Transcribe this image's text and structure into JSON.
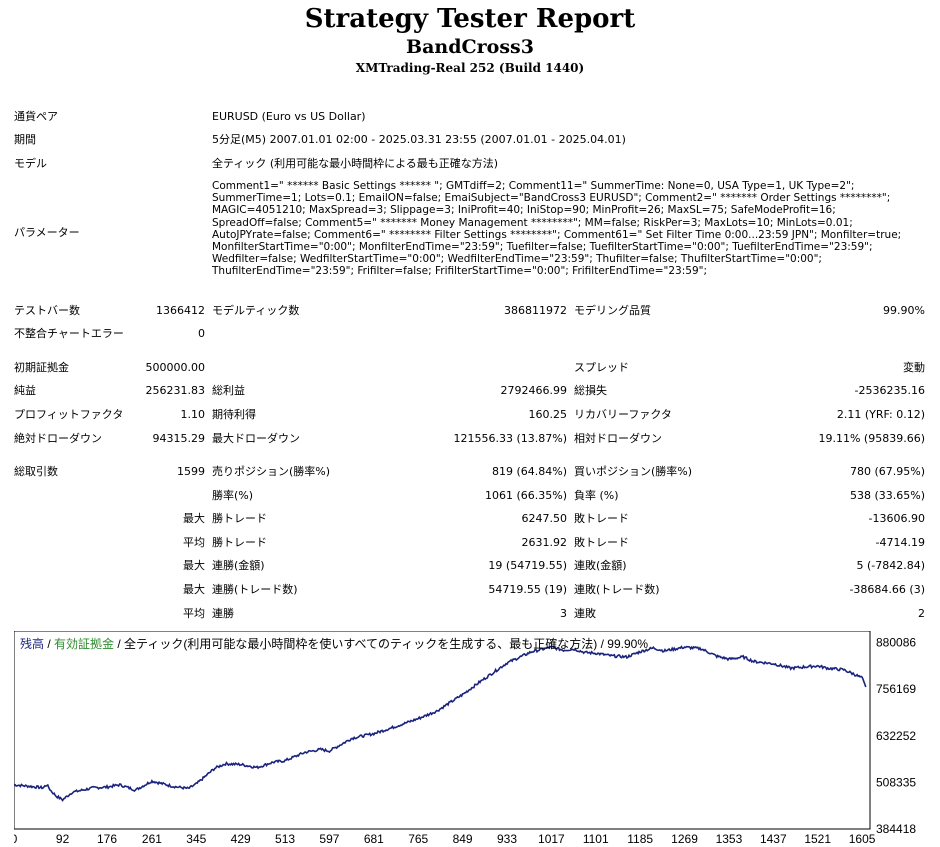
{
  "title": "Strategy Tester Report",
  "subtitle": "BandCross3",
  "server": "XMTrading-Real 252 (Build 1440)",
  "info": {
    "pair_label": "通貨ペア",
    "pair_value": "EURUSD (Euro vs US Dollar)",
    "period_label": "期間",
    "period_value": "5分足(M5) 2007.01.01 02:00 - 2025.03.31 23:55 (2007.01.01 - 2025.04.01)",
    "model_label": "モデル",
    "model_value": "全ティック (利用可能な最小時間枠による最も正確な方法)",
    "params_label": "パラメーター",
    "params_value": "Comment1=\" ****** Basic Settings ****** \"; GMTdiff=2; Comment11=\" SummerTime: None=0, USA Type=1, UK Type=2\"; SummerTime=1; Lots=0.1; EmailON=false; EmaiSubject=\"BandCross3 EURUSD\"; Comment2=\" ******* Order Settings ********\"; MAGIC=4051210; MaxSpread=3; Slippage=3; IniProfit=40; IniStop=90; MinProfit=26; MaxSL=75; SafeModeProfit=16; SpreadOff=false; Comment5=\" ******* Money Management ********\"; MM=false; RiskPer=3; MaxLots=10; MinLots=0.01; AutoJPYrate=false; Comment6=\" ******** Filter Settings ********\"; Comment61=\" Set Filter Time 0:00...23:59 JPN\"; Monfilter=true; MonfilterStartTime=\"0:00\"; MonfilterEndTime=\"23:59\"; Tuefilter=false; TuefilterStartTime=\"0:00\"; TuefilterEndTime=\"23:59\"; Wedfilter=false; WedfilterStartTime=\"0:00\"; WedfilterEndTime=\"23:59\"; Thufilter=false; ThufilterStartTime=\"0:00\"; ThufilterEndTime=\"23:59\"; Frifilter=false; FrifilterStartTime=\"0:00\"; FrifilterEndTime=\"23:59\";"
  },
  "stats": {
    "bars_label": "テストバー数",
    "bars": "1366412",
    "ticks_label": "モデルティック数",
    "ticks": "386811972",
    "quality_label": "モデリング品質",
    "quality": "99.90%",
    "mismatch_label": "不整合チャートエラー",
    "mismatch": "0",
    "deposit_label": "初期証拠金",
    "deposit": "500000.00",
    "spread_label": "スプレッド",
    "spread": "変動",
    "net_label": "純益",
    "net": "256231.83",
    "gross_profit_label": "総利益",
    "gross_profit": "2792466.99",
    "gross_loss_label": "総損失",
    "gross_loss": "-2536235.16",
    "pf_label": "プロフィットファクタ",
    "pf": "1.10",
    "payoff_label": "期待利得",
    "payoff": "160.25",
    "recovery_label": "リカバリーファクタ",
    "recovery": "2.11 (YRF: 0.12)",
    "abs_dd_label": "絶対ドローダウン",
    "abs_dd": "94315.29",
    "max_dd_label": "最大ドローダウン",
    "max_dd": "121556.33 (13.87%)",
    "rel_dd_label": "相対ドローダウン",
    "rel_dd": "19.11% (95839.66)",
    "trades_label": "総取引数",
    "trades": "1599",
    "short_label": "売りポジション(勝率%)",
    "short": "819 (64.84%)",
    "long_label": "買いポジション(勝率%)",
    "long": "780 (67.95%)",
    "win_rate_label": "勝率(%)",
    "win_rate": "1061 (66.35%)",
    "loss_rate_label": "負率 (%)",
    "loss_rate": "538 (33.65%)",
    "max_word": "最大",
    "avg_word": "平均",
    "win_trade_label": "勝トレード",
    "loss_trade_label": "敗トレード",
    "largest_win": "6247.50",
    "largest_loss": "-13606.90",
    "avg_win": "2631.92",
    "avg_loss": "-4714.19",
    "cons_win_amt_label": "連勝(金額)",
    "cons_win_amt": "19 (54719.55)",
    "cons_loss_amt_label": "連敗(金額)",
    "cons_loss_amt": "5 (-7842.84)",
    "cons_win_cnt_label": "連勝(トレード数)",
    "cons_win_cnt": "54719.55 (19)",
    "cons_loss_cnt_label": "連敗(トレード数)",
    "cons_loss_cnt": "-38684.66 (3)",
    "avg_cons_win_label": "連勝",
    "avg_cons_win": "3",
    "avg_cons_loss_label": "連敗",
    "avg_cons_loss": "2"
  },
  "chart_data": {
    "type": "line",
    "legend_balance": "残高",
    "legend_sep": " / ",
    "legend_equity": "有効証拠金",
    "legend_rest": " / 全ティック(利用可能な最小時間枠を使いすべてのティックを生成する、最も正確な方法) / 99.90%",
    "colors": {
      "line": "#1a237e",
      "balance_text": "#1a237e",
      "equity_text": "#2e8b2e"
    },
    "ylim": [
      384418,
      911000
    ],
    "xlim": [
      0,
      1620
    ],
    "yticks": [
      "880086",
      "756169",
      "632252",
      "508335",
      "384418"
    ],
    "ytick_values": [
      880086,
      756169,
      632252,
      508335,
      384418
    ],
    "xticks": [
      "0",
      "92",
      "176",
      "261",
      "345",
      "429",
      "513",
      "597",
      "681",
      "765",
      "849",
      "933",
      "1017",
      "1101",
      "1185",
      "1269",
      "1353",
      "1437",
      "1521",
      "1605"
    ],
    "xtick_values": [
      0,
      92,
      176,
      261,
      345,
      429,
      513,
      597,
      681,
      765,
      849,
      933,
      1017,
      1101,
      1185,
      1269,
      1353,
      1437,
      1521,
      1605
    ],
    "series": [
      {
        "x": [
          0,
          30,
          55,
          62,
          70,
          80,
          92,
          110,
          130,
          150,
          176,
          200,
          230,
          261,
          300,
          330,
          345,
          360,
          380,
          400,
          429,
          460,
          490,
          513,
          550,
          580,
          597,
          640,
          681,
          720,
          765,
          800,
          849,
          880,
          933,
          980,
          1017,
          1040,
          1060,
          1080,
          1101,
          1130,
          1160,
          1185,
          1210,
          1230,
          1269,
          1300,
          1330,
          1353,
          1380,
          1400,
          1437,
          1470,
          1500,
          1521,
          1540,
          1570,
          1590,
          1605,
          1612
        ],
        "y": [
          502000,
          498000,
          494000,
          502000,
          486000,
          472000,
          462000,
          482000,
          488000,
          494000,
          496000,
          502000,
          488000,
          512000,
          498000,
          492000,
          504000,
          522000,
          546000,
          558000,
          556000,
          548000,
          562000,
          566000,
          588000,
          596000,
          592000,
          626000,
          638000,
          656000,
          678000,
          698000,
          742000,
          774000,
          826000,
          856000,
          868000,
          860000,
          863000,
          854000,
          852000,
          845000,
          842000,
          856000,
          866000,
          858000,
          868000,
          864000,
          844000,
          836000,
          842000,
          830000,
          824000,
          812000,
          816000,
          818000,
          812000,
          808000,
          796000,
          786000,
          762000
        ]
      }
    ]
  }
}
